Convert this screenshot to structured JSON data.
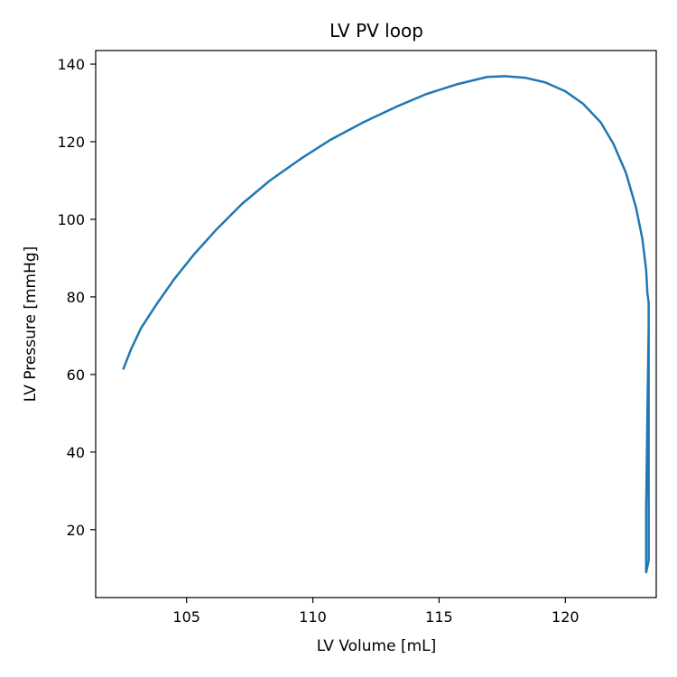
{
  "chart_data": {
    "type": "line",
    "title": "LV PV loop",
    "xlabel": "LV Volume [mL]",
    "ylabel": "LV Pressure [mmHg]",
    "xlim": [
      101.4,
      123.6
    ],
    "ylim": [
      2.5,
      143.5
    ],
    "xticks": [
      105,
      110,
      115,
      120
    ],
    "yticks": [
      20,
      40,
      60,
      80,
      100,
      120,
      140
    ],
    "grid": false,
    "color": "#1f77b4",
    "series": [
      {
        "x": [
          102.5,
          102.8,
          103.2,
          103.8,
          104.5,
          105.3,
          106.2,
          107.2,
          108.3,
          109.5,
          110.7,
          112.0,
          113.3,
          114.5,
          115.7,
          116.9,
          117.6,
          118.4,
          119.2,
          120.0,
          120.7,
          121.4,
          121.9,
          122.4,
          122.8,
          123.05,
          123.2,
          123.25,
          123.3,
          123.3,
          123.3,
          123.3,
          123.3,
          123.3,
          123.2,
          123.2,
          123.2,
          123.25,
          123.3
        ],
        "y": [
          61.5,
          66.5,
          72.0,
          78.0,
          84.5,
          91.0,
          97.5,
          104.0,
          110.0,
          115.5,
          120.5,
          125.0,
          129.0,
          132.3,
          134.8,
          136.7,
          136.9,
          136.5,
          135.3,
          133.0,
          129.8,
          125.0,
          119.5,
          112.0,
          103.0,
          95.0,
          87.0,
          81.0,
          78.5,
          70.0,
          55.0,
          40.0,
          25.0,
          12.0,
          9.0,
          9.5,
          25.0,
          50.0,
          72.0
        ]
      }
    ]
  }
}
